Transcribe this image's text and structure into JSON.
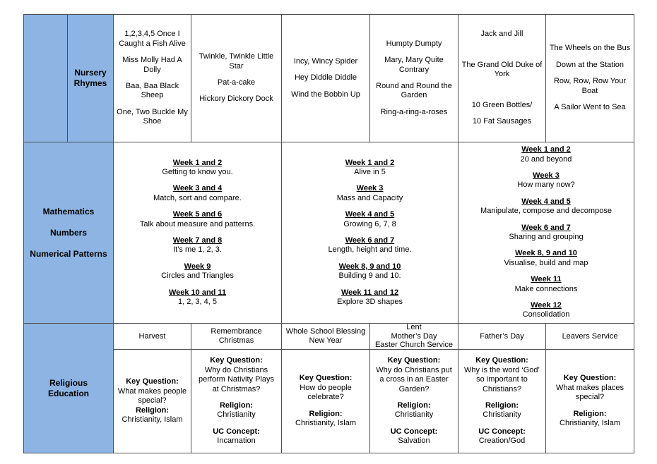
{
  "colors": {
    "cell_blue": "#8db4e2",
    "border": "#4f4f4f",
    "text": "#000000",
    "page_bg": "#ffffff"
  },
  "table": {
    "nursery": {
      "label": "Nursery\nRhymes",
      "cells": [
        {
          "lines": [
            {
              "t": "1,2,3,4,5 Once I Caught a Fish Alive"
            },
            {
              "k": "g"
            },
            {
              "t": "Miss Molly Had A Dolly"
            },
            {
              "k": "g"
            },
            {
              "t": "Baa, Baa Black Sheep"
            },
            {
              "k": "g"
            },
            {
              "t": "One, Two Buckle My Shoe"
            }
          ]
        },
        {
          "lines": [
            {
              "t": "Twinkle, Twinkle Little Star"
            },
            {
              "k": "g"
            },
            {
              "t": "Pat-a-cake"
            },
            {
              "k": "g"
            },
            {
              "t": "Hickory Dickory Dock"
            }
          ]
        },
        {
          "lines": [
            {
              "t": "Incy, Wincy Spider"
            },
            {
              "k": "g"
            },
            {
              "t": "Hey Diddle Diddle"
            },
            {
              "k": "g"
            },
            {
              "t": "Wind the Bobbin Up"
            }
          ]
        },
        {
          "lines": [
            {
              "t": "Humpty Dumpty"
            },
            {
              "k": "g"
            },
            {
              "t": "Mary, Mary Quite Contrary"
            },
            {
              "k": "g"
            },
            {
              "t": "Round and Round the Garden"
            },
            {
              "k": "g"
            },
            {
              "t": "Ring-a-ring-a-roses"
            }
          ]
        },
        {
          "lines": [
            {
              "t": "Jack and Jill"
            },
            {
              "k": "g"
            },
            {
              "k": "g"
            },
            {
              "k": "g"
            },
            {
              "t": "The Grand Old Duke of York"
            },
            {
              "k": "g"
            },
            {
              "k": "g"
            },
            {
              "k": "g"
            },
            {
              "t": "10 Green Bottles/"
            },
            {
              "k": "g"
            },
            {
              "t": "10 Fat Sausages"
            }
          ]
        },
        {
          "lines": [
            {
              "t": "The Wheels on the Bus"
            },
            {
              "k": "g"
            },
            {
              "t": "Down at the Station"
            },
            {
              "k": "g"
            },
            {
              "t": "Row, Row, Row Your Boat"
            },
            {
              "k": "g"
            },
            {
              "t": "A Sailor Went to Sea"
            }
          ]
        }
      ]
    },
    "maths": {
      "label": "Mathematics\n\nNumbers\n\nNumerical Patterns",
      "cells": [
        {
          "lines": [
            {
              "k": "h",
              "t": "Week 1 and 2"
            },
            {
              "t": "Getting to know you."
            },
            {
              "k": "g"
            },
            {
              "k": "h",
              "t": "Week 3 and 4"
            },
            {
              "t": "Match, sort and compare."
            },
            {
              "k": "g"
            },
            {
              "k": "h",
              "t": "Week 5 and 6"
            },
            {
              "t": "Talk about measure and patterns."
            },
            {
              "k": "g"
            },
            {
              "k": "h",
              "t": "Week 7 and 8"
            },
            {
              "t": "It’s me 1, 2, 3."
            },
            {
              "k": "g"
            },
            {
              "k": "h",
              "t": "Week 9"
            },
            {
              "t": "Circles and Triangles"
            },
            {
              "k": "g"
            },
            {
              "k": "h",
              "t": "Week 10 and 11"
            },
            {
              "t": "1, 2, 3, 4, 5"
            }
          ]
        },
        {
          "lines": [
            {
              "k": "h",
              "t": "Week 1 and 2"
            },
            {
              "t": "Alive in 5"
            },
            {
              "k": "g"
            },
            {
              "k": "h",
              "t": "Week 3"
            },
            {
              "t": "Mass and Capacity"
            },
            {
              "k": "g"
            },
            {
              "k": "h",
              "t": "Week 4 and 5"
            },
            {
              "t": "Growing 6, 7, 8"
            },
            {
              "k": "g"
            },
            {
              "k": "h",
              "t": "Week 6 and 7"
            },
            {
              "t": "Length, height and time."
            },
            {
              "k": "g"
            },
            {
              "k": "h",
              "t": "Week 8, 9 and 10"
            },
            {
              "t": "Building 9 and 10."
            },
            {
              "k": "g"
            },
            {
              "k": "h",
              "t": "Week 11 and 12"
            },
            {
              "t": "Explore 3D shapes"
            }
          ]
        },
        {
          "lines": [
            {
              "k": "h",
              "t": "Week 1 and 2"
            },
            {
              "t": "20 and beyond"
            },
            {
              "k": "g"
            },
            {
              "k": "h",
              "t": "Week 3"
            },
            {
              "t": "How many now?"
            },
            {
              "k": "g"
            },
            {
              "k": "h",
              "t": "Week 4 and 5"
            },
            {
              "t": "Manipulate, compose and decompose"
            },
            {
              "k": "g"
            },
            {
              "k": "h",
              "t": "Week 6 and 7"
            },
            {
              "t": "Sharing and grouping"
            },
            {
              "k": "g"
            },
            {
              "k": "h",
              "t": "Week 8, 9 and 10"
            },
            {
              "t": "Visualise, build and map"
            },
            {
              "k": "g"
            },
            {
              "k": "h",
              "t": "Week 11"
            },
            {
              "t": "Make connections"
            },
            {
              "k": "g"
            },
            {
              "k": "h",
              "t": "Week 12"
            },
            {
              "t": "Consolidation"
            }
          ]
        }
      ]
    },
    "re": {
      "label": "Religious\nEducation",
      "headers": [
        "Harvest",
        "Remembrance\nChristmas",
        "Whole School Blessing\nNew Year",
        "Lent\nMother’s Day\nEaster Church Service",
        "Father’s Day",
        "Leavers Service"
      ],
      "cells": [
        {
          "lines": [
            {
              "k": "b",
              "t": "Key Question:"
            },
            {
              "t": "What makes people special?"
            },
            {
              "k": "b",
              "t": "Religion:"
            },
            {
              "t": "Christianity, Islam"
            }
          ]
        },
        {
          "lines": [
            {
              "k": "b",
              "t": "Key Question:"
            },
            {
              "t": "Why do Christians perform Nativity Plays at Christmas?"
            },
            {
              "k": "g"
            },
            {
              "k": "b",
              "t": "Religion:"
            },
            {
              "t": "Christianity"
            },
            {
              "k": "g"
            },
            {
              "k": "b",
              "t": "UC Concept:"
            },
            {
              "t": "Incarnation"
            }
          ]
        },
        {
          "lines": [
            {
              "k": "b",
              "t": "Key Question:"
            },
            {
              "t": "How do people celebrate?"
            },
            {
              "k": "g"
            },
            {
              "k": "b",
              "t": "Religion:"
            },
            {
              "t": "Christianity, Islam"
            }
          ]
        },
        {
          "lines": [
            {
              "k": "b",
              "t": "Key Question:"
            },
            {
              "t": "Why do Christians put a cross in an Easter Garden?"
            },
            {
              "k": "g"
            },
            {
              "k": "b",
              "t": "Religion:"
            },
            {
              "t": "Christianity"
            },
            {
              "k": "g"
            },
            {
              "k": "b",
              "t": "UC Concept:"
            },
            {
              "t": "Salvation"
            }
          ]
        },
        {
          "lines": [
            {
              "k": "b",
              "t": "Key Question:"
            },
            {
              "t": "Why is the word ‘God’ so important to Christians?"
            },
            {
              "k": "g"
            },
            {
              "k": "b",
              "t": "Religion:"
            },
            {
              "t": "Christianity"
            },
            {
              "k": "g"
            },
            {
              "k": "b",
              "t": "UC Concept:"
            },
            {
              "t": "Creation/God"
            }
          ]
        },
        {
          "lines": [
            {
              "k": "b",
              "t": "Key Question:"
            },
            {
              "t": "What makes places special?"
            },
            {
              "k": "g"
            },
            {
              "k": "b",
              "t": "Religion:"
            },
            {
              "t": "Christianity, Islam"
            }
          ]
        }
      ]
    }
  }
}
